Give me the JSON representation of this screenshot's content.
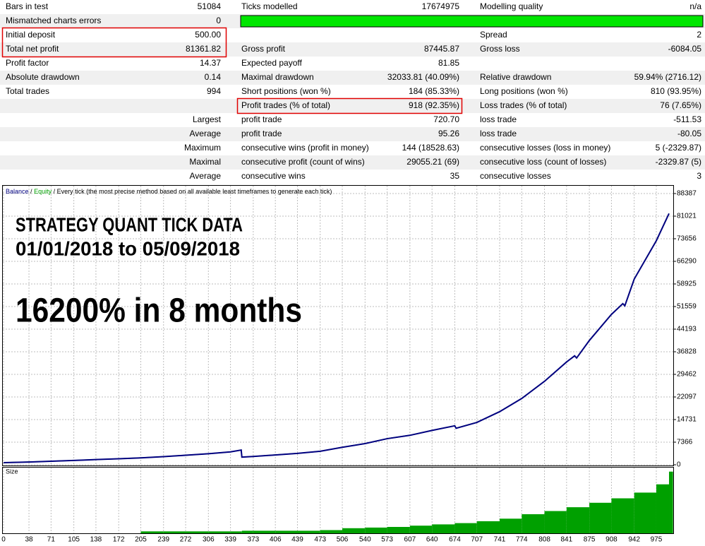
{
  "table": {
    "rows": [
      [
        "Bars in test",
        "51084",
        "Ticks modelled",
        "17674975",
        "Modelling quality",
        "n/a"
      ],
      [
        "Mismatched charts errors",
        "0",
        null,
        null,
        null,
        null
      ],
      [
        "Initial deposit",
        "500.00",
        null,
        null,
        "Spread",
        "2"
      ],
      [
        "Total net profit",
        "81361.82",
        "Gross profit",
        "87445.87",
        "Gross loss",
        "-6084.05"
      ],
      [
        "Profit factor",
        "14.37",
        "Expected payoff",
        "81.85",
        null,
        null
      ],
      [
        "Absolute drawdown",
        "0.14",
        "Maximal drawdown",
        "32033.81 (40.09%)",
        "Relative drawdown",
        "59.94% (2716.12)"
      ],
      [
        "Total trades",
        "994",
        "Short positions (won %)",
        "184 (85.33%)",
        "Long positions (won %)",
        "810 (93.95%)"
      ],
      [
        null,
        null,
        "Profit trades (% of total)",
        "918 (92.35%)",
        "Loss trades (% of total)",
        "76 (7.65%)"
      ],
      [
        "Largest",
        null,
        "profit trade",
        "720.70",
        "loss trade",
        "-511.53"
      ],
      [
        "Average",
        null,
        "profit trade",
        "95.26",
        "loss trade",
        "-80.05"
      ],
      [
        "Maximum",
        null,
        "consecutive wins (profit in money)",
        "144 (18528.63)",
        "consecutive losses (loss in money)",
        "5 (-2329.87)"
      ],
      [
        "Maximal",
        null,
        "consecutive profit (count of wins)",
        "29055.21 (69)",
        "consecutive loss (count of losses)",
        "-2329.87 (5)"
      ],
      [
        "Average",
        null,
        "consecutive wins",
        "35",
        "consecutive losses",
        "3"
      ]
    ]
  },
  "chart_data": [
    {
      "type": "line",
      "legend_separator": "/",
      "legend_note": "Every tick (the most precise method based on all available least timeframes to generate each tick)",
      "annotations": [
        "STRATEGY QUANT TICK DATA",
        "01/01/2018 to 05/09/2018",
        "16200% in 8 months"
      ],
      "annotation_color": "#ff0000",
      "x": [
        0,
        38,
        71,
        105,
        138,
        172,
        205,
        239,
        272,
        306,
        339,
        355,
        356,
        373,
        406,
        439,
        473,
        506,
        540,
        573,
        607,
        640,
        674,
        676,
        707,
        741,
        774,
        808,
        841,
        853,
        856,
        875,
        908,
        925,
        928,
        942,
        975,
        994
      ],
      "series": [
        {
          "name": "Balance",
          "color": "#000080",
          "values": [
            690,
            900,
            1150,
            1400,
            1700,
            1950,
            2250,
            2650,
            3100,
            3600,
            4200,
            4800,
            2500,
            2700,
            3200,
            3700,
            4400,
            5700,
            6900,
            8500,
            9600,
            11200,
            12700,
            11900,
            13800,
            17300,
            21600,
            27200,
            33500,
            35500,
            34800,
            40500,
            49000,
            52500,
            51800,
            60500,
            73000,
            81861.82
          ]
        },
        {
          "name": "Equity",
          "color": "#00a000",
          "values": [
            700,
            910,
            1160,
            1410,
            1710,
            1960,
            2260,
            2660,
            3110,
            3610,
            4210,
            4810,
            2510,
            2710,
            3210,
            3710,
            4410,
            5710,
            6910,
            8510,
            9610,
            11210,
            12710,
            11910,
            13810,
            17310,
            21610,
            27210,
            33510,
            35510,
            34810,
            40510,
            49010,
            52510,
            51810,
            60510,
            73010,
            81871.82
          ]
        }
      ],
      "xlim": [
        0,
        1000
      ],
      "xticks": [
        0,
        38,
        71,
        105,
        138,
        172,
        205,
        239,
        272,
        306,
        339,
        373,
        406,
        439,
        473,
        506,
        540,
        573,
        607,
        640,
        674,
        707,
        741,
        774,
        808,
        841,
        875,
        908,
        942,
        975
      ],
      "ylim": [
        0,
        88387
      ],
      "yticks": [
        0,
        7366,
        14731,
        22097,
        29462,
        36828,
        44193,
        51559,
        58925,
        66290,
        73656,
        81021,
        88387
      ],
      "grid": true
    },
    {
      "type": "bar",
      "ylabel": "Size",
      "color": "#00a000",
      "x": [
        0,
        205,
        239,
        272,
        306,
        339,
        356,
        373,
        406,
        439,
        473,
        506,
        540,
        573,
        607,
        640,
        674,
        707,
        741,
        774,
        808,
        841,
        875,
        908,
        942,
        975,
        994
      ],
      "values": [
        0,
        0.3,
        0.3,
        0.3,
        0.3,
        0.3,
        0.4,
        0.4,
        0.4,
        0.4,
        0.5,
        0.8,
        0.9,
        1.0,
        1.2,
        1.4,
        1.6,
        1.9,
        2.3,
        3.0,
        3.5,
        4.1,
        4.8,
        5.5,
        6.4,
        7.7,
        9.7
      ],
      "xlim": [
        0,
        1000
      ],
      "ylim": [
        0,
        10
      ]
    }
  ]
}
